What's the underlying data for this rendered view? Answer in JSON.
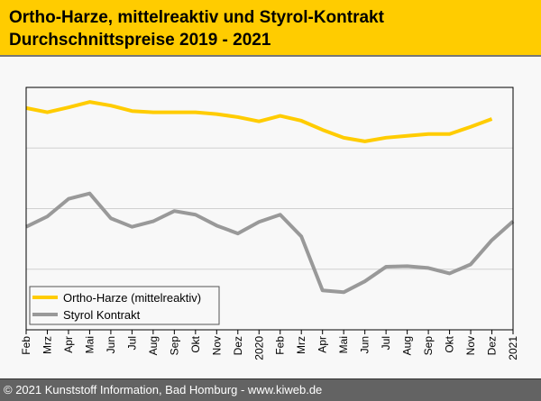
{
  "chart_data": {
    "type": "line",
    "title": "Ortho-Harze, mittelreaktiv und Styrol-Kontrakt",
    "subtitle": "Durchschnittspreise 2019 - 2021",
    "xlabel": "",
    "ylabel": "",
    "categories": [
      "Feb",
      "Mrz",
      "Apr",
      "Mai",
      "Jun",
      "Jul",
      "Aug",
      "Sep",
      "Okt",
      "Nov",
      "Dez",
      "2020",
      "Feb",
      "Mrz",
      "Apr",
      "Mai",
      "Jun",
      "Jul",
      "Aug",
      "Sep",
      "Okt",
      "Nov",
      "Dez",
      "2021"
    ],
    "ylim": [
      0,
      4
    ],
    "y_gridlines": [
      1,
      2,
      3
    ],
    "grid": true,
    "legend_position": "bottom-left",
    "series": [
      {
        "name": "Ortho-Harze (mittelreaktiv)",
        "color": "#ffcc00",
        "values": [
          3.66,
          3.59,
          3.67,
          3.76,
          3.7,
          3.61,
          3.59,
          3.59,
          3.59,
          3.56,
          3.51,
          3.44,
          3.53,
          3.45,
          3.3,
          3.17,
          3.11,
          3.17,
          3.2,
          3.23,
          3.23,
          3.35,
          3.48,
          null
        ]
      },
      {
        "name": "Styrol Kontrakt",
        "color": "#999999",
        "values": [
          1.7,
          1.87,
          2.16,
          2.25,
          1.84,
          1.7,
          1.79,
          1.96,
          1.9,
          1.72,
          1.59,
          1.78,
          1.9,
          1.54,
          0.65,
          0.62,
          0.8,
          1.04,
          1.05,
          1.02,
          0.93,
          1.08,
          1.48,
          1.79
        ]
      }
    ]
  },
  "footer": "© 2021 Kunststoff Information, Bad Homburg - www.kiweb.de"
}
